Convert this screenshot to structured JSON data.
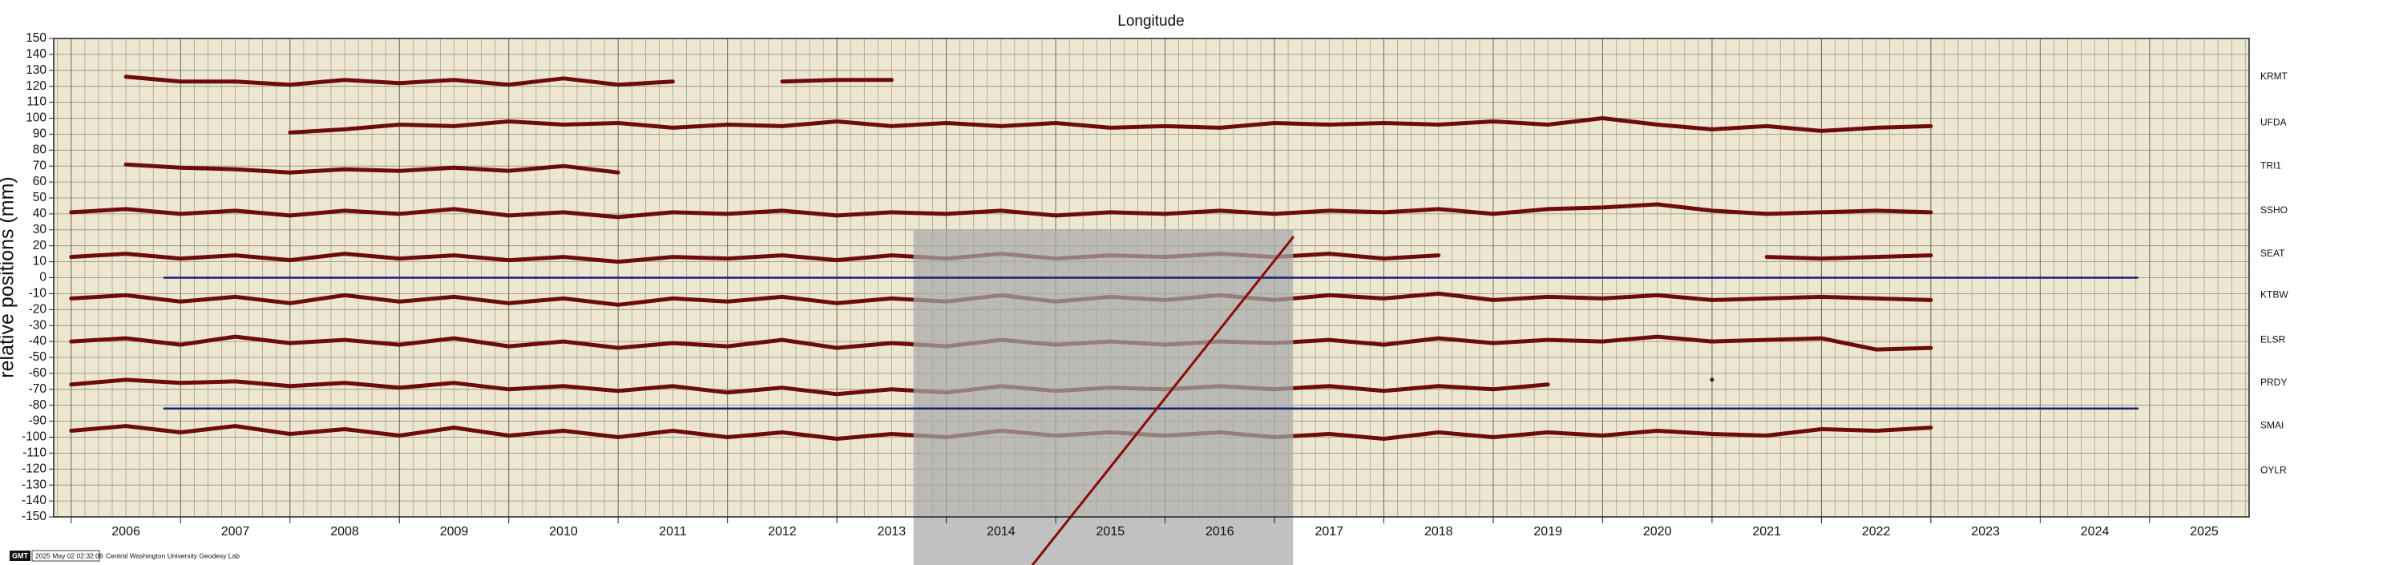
{
  "chart_data": {
    "type": "line",
    "title": "Longitude",
    "y_label": "relative positions (mm)",
    "xlim": [
      2005.84,
      2025.91
    ],
    "xticks": [
      2006,
      2007,
      2008,
      2009,
      2010,
      2011,
      2012,
      2013,
      2014,
      2015,
      2016,
      2017,
      2018,
      2019,
      2020,
      2021,
      2022,
      2023,
      2024,
      2025
    ],
    "x_minor_step": 0.125,
    "ylim": [
      -150,
      150
    ],
    "yticks": [
      -150,
      -140,
      -130,
      -120,
      -110,
      -100,
      -90,
      -80,
      -70,
      -60,
      -50,
      -40,
      -30,
      -20,
      -10,
      0,
      10,
      20,
      30,
      40,
      50,
      60,
      70,
      80,
      90,
      100,
      110,
      120,
      130,
      140,
      150
    ],
    "grid": true,
    "x": [
      2006,
      2006.5,
      2007,
      2007.5,
      2008,
      2008.5,
      2009,
      2009.5,
      2010,
      2010.5,
      2011,
      2011.5,
      2012,
      2012.5,
      2013,
      2013.5,
      2014,
      2014.5,
      2015,
      2015.5,
      2016,
      2016.5,
      2017,
      2017.5,
      2018,
      2018.5,
      2019,
      2019.5,
      2020,
      2020.5,
      2021,
      2021.5,
      2022,
      2022.5,
      2023
    ],
    "series": [
      {
        "color": "#6e0b0b",
        "values": [
          null,
          126,
          123,
          123,
          121,
          124,
          122,
          124,
          121,
          125,
          121,
          123,
          null,
          123,
          124,
          124,
          null,
          null,
          null,
          null,
          null,
          null,
          null,
          null,
          null,
          null,
          null,
          null,
          null,
          null,
          null,
          null,
          null,
          null,
          null
        ]
      },
      {
        "color": "#6e0b0b",
        "values": [
          null,
          null,
          null,
          null,
          91,
          93,
          96,
          95,
          98,
          96,
          97,
          94,
          96,
          95,
          98,
          95,
          97,
          95,
          97,
          94,
          95,
          94,
          97,
          96,
          97,
          96,
          98,
          96,
          100,
          96,
          93,
          95,
          92,
          94,
          95
        ]
      },
      {
        "color": "#6e0b0b",
        "values": [
          null,
          71,
          69,
          68,
          66,
          68,
          67,
          69,
          67,
          70,
          66,
          null,
          null,
          null,
          null,
          null,
          null,
          null,
          null,
          null,
          null,
          null,
          null,
          null,
          null,
          null,
          null,
          null,
          null,
          null,
          null,
          null,
          null,
          null,
          null
        ]
      },
      {
        "color": "#6e0b0b",
        "values": [
          41,
          43,
          40,
          42,
          39,
          42,
          40,
          43,
          39,
          41,
          38,
          41,
          40,
          42,
          39,
          41,
          40,
          42,
          39,
          41,
          40,
          42,
          40,
          42,
          41,
          43,
          40,
          43,
          44,
          46,
          42,
          40,
          41,
          42,
          41
        ]
      },
      {
        "color": "#6e0b0b",
        "values": [
          13,
          15,
          12,
          14,
          11,
          15,
          12,
          14,
          11,
          13,
          10,
          13,
          12,
          14,
          11,
          14,
          12,
          15,
          12,
          14,
          13,
          15,
          13,
          15,
          12,
          14,
          null,
          null,
          null,
          null,
          null,
          13,
          12,
          13,
          14
        ]
      },
      {
        "color": "#6e0b0b",
        "values": [
          -13,
          -11,
          -15,
          -12,
          -16,
          -11,
          -15,
          -12,
          -16,
          -13,
          -17,
          -13,
          -15,
          -12,
          -16,
          -13,
          -15,
          -11,
          -15,
          -12,
          -14,
          -11,
          -14,
          -11,
          -13,
          -10,
          -14,
          -12,
          -13,
          -11,
          -14,
          -13,
          -12,
          -13,
          -14
        ]
      },
      {
        "color": "#6e0b0b",
        "values": [
          -40,
          -38,
          -42,
          -37,
          -41,
          -39,
          -42,
          -38,
          -43,
          -40,
          -44,
          -41,
          -43,
          -39,
          -44,
          -41,
          -43,
          -39,
          -42,
          -40,
          -42,
          -40,
          -41,
          -39,
          -42,
          -38,
          -41,
          -39,
          -40,
          -37,
          -40,
          -39,
          -38,
          -45,
          -44
        ]
      },
      {
        "color": "#6e0b0b",
        "values": [
          -67,
          -64,
          -66,
          -65,
          -68,
          -66,
          -69,
          -66,
          -70,
          -68,
          -71,
          -68,
          -72,
          -69,
          -73,
          -70,
          -72,
          -68,
          -71,
          -69,
          -70,
          -68,
          -70,
          -68,
          -71,
          -68,
          -70,
          -67,
          null,
          null,
          -64,
          null,
          null,
          null,
          null
        ]
      },
      {
        "color": "#6e0b0b",
        "values": [
          -96,
          -93,
          -97,
          -93,
          -98,
          -95,
          -99,
          -94,
          -99,
          -96,
          -100,
          -96,
          -100,
          -97,
          -101,
          -98,
          -100,
          -96,
          -99,
          -97,
          -99,
          -97,
          -100,
          -98,
          -101,
          -97,
          -100,
          -97,
          -99,
          -96,
          -98,
          -99,
          -95,
          -96,
          -94
        ]
      },
      {
        "color": "#1a1f7a",
        "x": [
          2006.85,
          2024.89
        ],
        "values": [
          0,
          0
        ]
      },
      {
        "color": "#1a1f7a",
        "x": [
          2006.85,
          2024.89
        ],
        "values": [
          -82,
          -82
        ]
      },
      {
        "color": "#8b0a0a",
        "x": [
          2014.79,
          2017.17
        ],
        "values": [
          -180,
          25.4
        ]
      }
    ],
    "shaded_regions": [
      {
        "x": [
          2013.7,
          2017.17
        ],
        "top": 30,
        "color": "#a9a9a9"
      }
    ],
    "station_labels": [
      {
        "label": "KRMT",
        "value": 126
      },
      {
        "label": "UFDA",
        "value": 97
      },
      {
        "label": "TRI1",
        "value": 70
      },
      {
        "label": "SSHO",
        "value": 42
      },
      {
        "label": "SEAT",
        "value": 15
      },
      {
        "label": "KTBW",
        "value": -11
      },
      {
        "label": "ELSR",
        "value": -39
      },
      {
        "label": "PRDY",
        "value": -66
      },
      {
        "label": "SMAI",
        "value": -93
      },
      {
        "label": "OYLR",
        "value": -121
      }
    ],
    "footer": {
      "logo": "GMT",
      "timestamp": "2025 May 02 02:32:06",
      "credit": "Central Washington University Geodesy Lab"
    }
  }
}
